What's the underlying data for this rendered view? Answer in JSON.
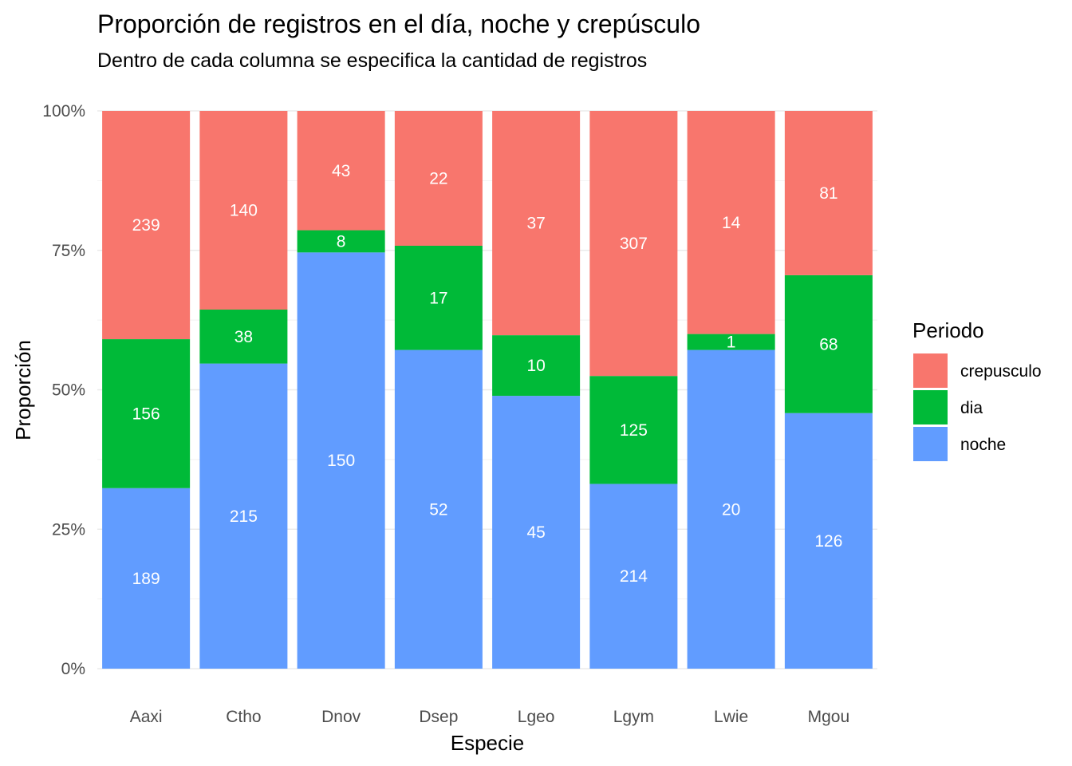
{
  "chart_data": {
    "type": "bar",
    "stacked": true,
    "normalized": true,
    "title": "Proporción de registros en el día, noche y crepúsculo",
    "subtitle": "Dentro de cada columna se especifica la cantidad de registros",
    "xlabel": "Especie",
    "ylabel": "Proporción",
    "ylim": [
      0,
      1
    ],
    "yticks": [
      "0%",
      "25%",
      "50%",
      "75%",
      "100%"
    ],
    "categories": [
      "Aaxi",
      "Ctho",
      "Dnov",
      "Dsep",
      "Lgeo",
      "Lgym",
      "Lwie",
      "Mgou"
    ],
    "series": [
      {
        "name": "noche",
        "color": "#619CFF",
        "values": [
          189,
          215,
          150,
          52,
          45,
          214,
          20,
          126
        ]
      },
      {
        "name": "dia",
        "color": "#00BA38",
        "values": [
          156,
          38,
          8,
          17,
          10,
          125,
          1,
          68
        ]
      },
      {
        "name": "crepusculo",
        "color": "#F8766D",
        "values": [
          239,
          140,
          43,
          22,
          37,
          307,
          14,
          81
        ]
      }
    ],
    "legend": {
      "title": "Periodo",
      "position": "right",
      "entries": [
        "crepusculo",
        "dia",
        "noche"
      ]
    }
  }
}
